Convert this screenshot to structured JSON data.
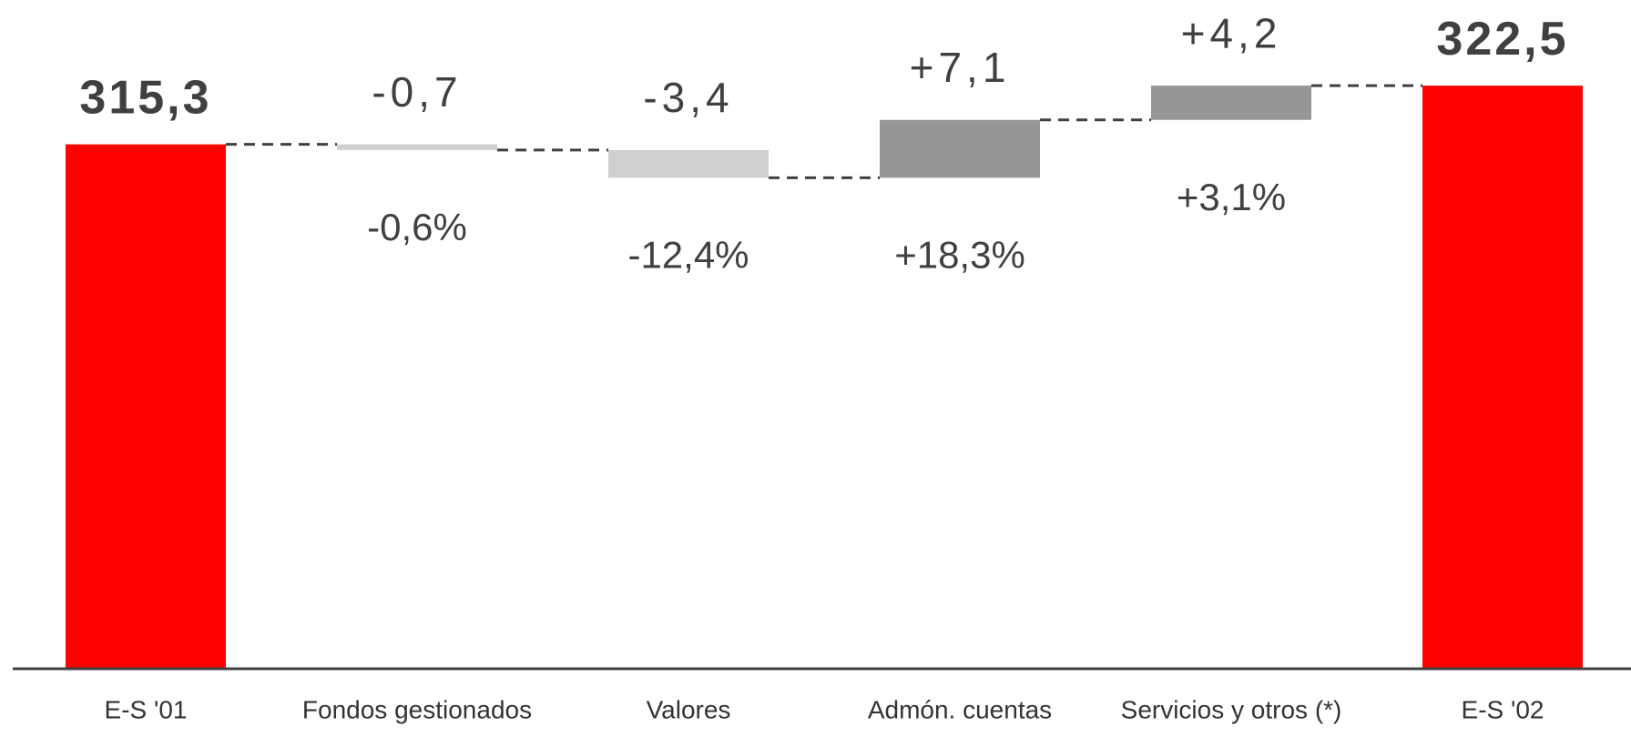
{
  "chart_data": {
    "type": "waterfall",
    "categories": [
      "E-S '01",
      "Fondos gestionados",
      "Valores",
      "Admón. cuentas",
      "Servicios y otros (*)",
      "E-S '02"
    ],
    "values": [
      315.3,
      -0.7,
      -3.4,
      7.1,
      4.2,
      322.5
    ],
    "value_labels": [
      "315,3",
      "-0,7",
      "-3,4",
      "+7,1",
      "+4,2",
      "322,5"
    ],
    "totals": [
      true,
      false,
      false,
      false,
      false,
      true
    ],
    "pct_change": [
      null,
      -0.6,
      -12.4,
      18.3,
      3.1,
      null
    ],
    "pct_change_labels": [
      null,
      "-0,6%",
      "-12,4%",
      "+18,3%",
      "+3,1%",
      null
    ],
    "colors": {
      "total": "#ff0000",
      "decrease": "#d0d0d0",
      "increase": "#969696"
    },
    "ylim": [
      251,
      333
    ]
  }
}
